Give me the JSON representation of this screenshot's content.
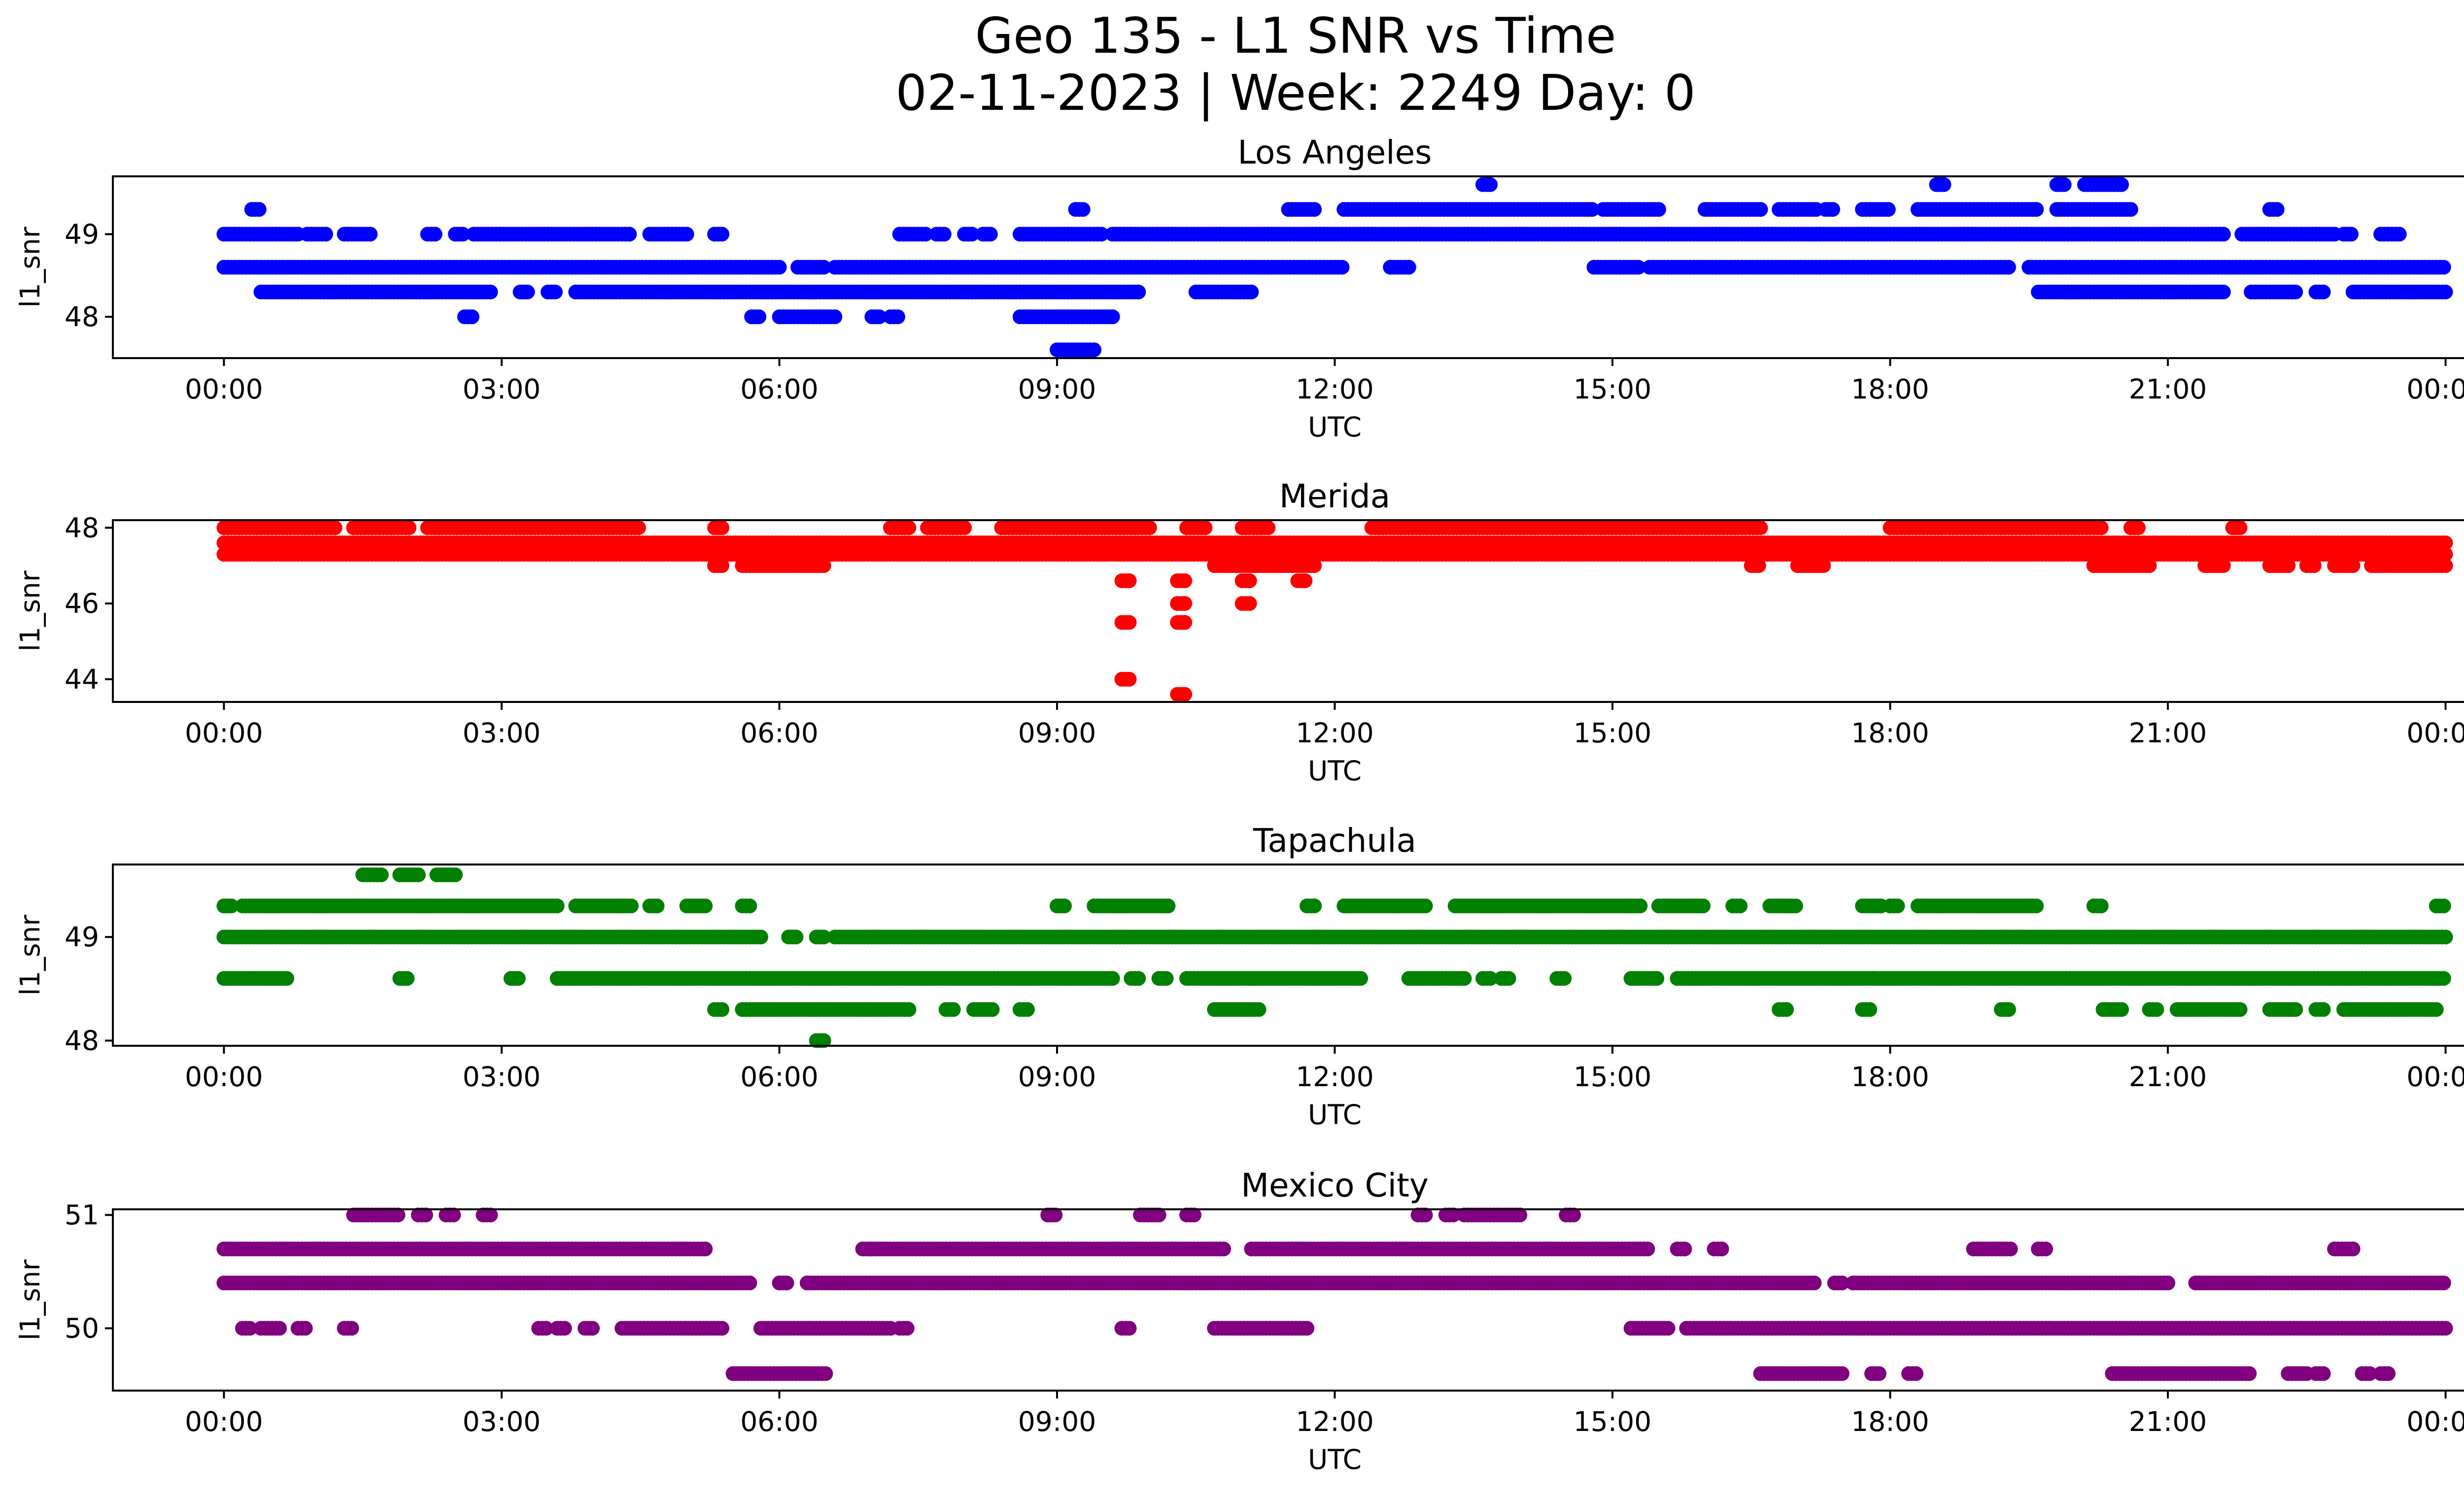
{
  "chart_data": {
    "type": "scatter",
    "suptitle_line1": "Geo 135 - L1 SNR vs Time",
    "suptitle_line2": "02-11-2023 | Week: 2249 Day: 0",
    "xlabel": "UTC",
    "ylabel": "l1_snr",
    "x_ticks": [
      "00:00",
      "03:00",
      "06:00",
      "09:00",
      "12:00",
      "15:00",
      "18:00",
      "21:00",
      "00:00"
    ],
    "x_range_hours": [
      -1.2,
      25.2
    ],
    "x_unit": "hours UTC",
    "grid": false,
    "panels": [
      {
        "title": "Los Angeles",
        "color": "#0000ff",
        "ylim": [
          47.5,
          49.7
        ],
        "yticks": [
          48,
          49
        ],
        "ytick_labels": [
          "48",
          "49"
        ],
        "rows": [
          {
            "y": 49.6,
            "segments": [
              [
                13.6,
                13.7
              ],
              [
                18.5,
                18.6
              ],
              [
                19.8,
                19.9
              ],
              [
                20.1,
                20.5
              ]
            ]
          },
          {
            "y": 49.3,
            "segments": [
              [
                0.3,
                0.4
              ],
              [
                9.2,
                9.3
              ],
              [
                11.5,
                11.8
              ],
              [
                12.1,
                14.8
              ],
              [
                14.9,
                15.5
              ],
              [
                16.0,
                16.6
              ],
              [
                16.8,
                17.2
              ],
              [
                17.3,
                17.4
              ],
              [
                17.7,
                18.0
              ],
              [
                18.3,
                19.6
              ],
              [
                19.8,
                20.6
              ],
              [
                22.1,
                22.2
              ]
            ]
          },
          {
            "y": 49.0,
            "segments": [
              [
                0.0,
                0.8
              ],
              [
                0.9,
                1.1
              ],
              [
                1.3,
                1.6
              ],
              [
                2.2,
                2.3
              ],
              [
                2.5,
                2.6
              ],
              [
                2.7,
                4.4
              ],
              [
                4.6,
                5.0
              ],
              [
                5.3,
                5.4
              ],
              [
                7.3,
                7.6
              ],
              [
                7.7,
                7.8
              ],
              [
                8.0,
                8.1
              ],
              [
                8.2,
                8.3
              ],
              [
                8.6,
                9.5
              ],
              [
                9.6,
                21.6
              ],
              [
                21.8,
                22.8
              ],
              [
                22.9,
                23.0
              ],
              [
                23.3,
                23.5
              ]
            ]
          },
          {
            "y": 48.6,
            "segments": [
              [
                0.0,
                6.0
              ],
              [
                6.2,
                6.5
              ],
              [
                6.6,
                12.1
              ],
              [
                12.6,
                12.8
              ],
              [
                14.8,
                15.3
              ],
              [
                15.4,
                19.3
              ],
              [
                19.5,
                24.0
              ]
            ]
          },
          {
            "y": 48.3,
            "segments": [
              [
                0.4,
                2.9
              ],
              [
                3.2,
                3.3
              ],
              [
                3.5,
                3.6
              ],
              [
                3.8,
                9.9
              ],
              [
                10.5,
                11.1
              ],
              [
                19.6,
                21.6
              ],
              [
                21.9,
                22.4
              ],
              [
                22.6,
                22.7
              ],
              [
                23.0,
                24.0
              ]
            ]
          },
          {
            "y": 48.0,
            "segments": [
              [
                2.6,
                2.7
              ],
              [
                5.7,
                5.8
              ],
              [
                6.0,
                6.6
              ],
              [
                7.0,
                7.1
              ],
              [
                7.2,
                7.3
              ],
              [
                8.6,
                9.6
              ]
            ]
          },
          {
            "y": 47.6,
            "segments": [
              [
                9.0,
                9.4
              ]
            ]
          }
        ]
      },
      {
        "title": "Merida",
        "color": "#ff0000",
        "ylim": [
          43.4,
          48.2
        ],
        "yticks": [
          44,
          46,
          48
        ],
        "ytick_labels": [
          "44",
          "46",
          "48"
        ],
        "rows": [
          {
            "y": 48.0,
            "segments": [
              [
                0.0,
                1.2
              ],
              [
                1.4,
                2.0
              ],
              [
                2.2,
                4.5
              ],
              [
                5.3,
                5.4
              ],
              [
                7.2,
                7.4
              ],
              [
                7.6,
                8.0
              ],
              [
                8.4,
                10.0
              ],
              [
                10.4,
                10.6
              ],
              [
                11.0,
                11.3
              ],
              [
                12.4,
                16.6
              ],
              [
                18.0,
                20.3
              ],
              [
                20.6,
                20.7
              ],
              [
                21.7,
                21.8
              ]
            ]
          },
          {
            "y": 47.6,
            "segments": [
              [
                0.0,
                24.0
              ]
            ]
          },
          {
            "y": 47.3,
            "segments": [
              [
                0.0,
                24.0
              ]
            ]
          },
          {
            "y": 47.0,
            "segments": [
              [
                5.3,
                5.4
              ],
              [
                5.6,
                6.5
              ],
              [
                10.7,
                11.8
              ],
              [
                16.5,
                16.6
              ],
              [
                17.0,
                17.3
              ],
              [
                20.2,
                20.8
              ],
              [
                21.4,
                21.6
              ],
              [
                22.1,
                22.3
              ],
              [
                22.5,
                22.6
              ],
              [
                22.8,
                23.0
              ],
              [
                23.2,
                24.0
              ]
            ]
          },
          {
            "y": 46.6,
            "segments": [
              [
                9.7,
                9.8
              ],
              [
                10.3,
                10.4
              ],
              [
                11.0,
                11.1
              ],
              [
                11.6,
                11.7
              ]
            ]
          },
          {
            "y": 46.0,
            "segments": [
              [
                10.3,
                10.4
              ],
              [
                11.0,
                11.1
              ]
            ]
          },
          {
            "y": 45.5,
            "segments": [
              [
                9.7,
                9.8
              ],
              [
                10.3,
                10.4
              ]
            ]
          },
          {
            "y": 44.0,
            "segments": [
              [
                9.7,
                9.8
              ]
            ]
          },
          {
            "y": 43.6,
            "segments": [
              [
                10.3,
                10.4
              ]
            ]
          }
        ]
      },
      {
        "title": "Tapachula",
        "color": "#008000",
        "ylim": [
          47.95,
          49.7
        ],
        "yticks": [
          48,
          49
        ],
        "ytick_labels": [
          "48",
          "49"
        ],
        "rows": [
          {
            "y": 49.6,
            "segments": [
              [
                1.5,
                1.7
              ],
              [
                1.9,
                2.1
              ],
              [
                2.3,
                2.5
              ]
            ]
          },
          {
            "y": 49.3,
            "segments": [
              [
                0.0,
                0.1
              ],
              [
                0.2,
                3.6
              ],
              [
                3.8,
                4.4
              ],
              [
                4.6,
                4.7
              ],
              [
                5.0,
                5.2
              ],
              [
                5.6,
                5.7
              ],
              [
                9.0,
                9.1
              ],
              [
                9.4,
                10.2
              ],
              [
                11.7,
                11.8
              ],
              [
                12.1,
                13.0
              ],
              [
                13.3,
                15.3
              ],
              [
                15.5,
                16.0
              ],
              [
                16.3,
                16.4
              ],
              [
                16.7,
                17.0
              ],
              [
                17.7,
                17.9
              ],
              [
                18.0,
                18.1
              ],
              [
                18.3,
                19.6
              ],
              [
                20.2,
                20.3
              ],
              [
                23.9,
                24.0
              ]
            ]
          },
          {
            "y": 49.0,
            "segments": [
              [
                0.0,
                5.8
              ],
              [
                6.1,
                6.2
              ],
              [
                6.4,
                6.5
              ],
              [
                6.6,
                24.0
              ]
            ]
          },
          {
            "y": 48.6,
            "segments": [
              [
                0.0,
                0.7
              ],
              [
                1.9,
                2.0
              ],
              [
                3.1,
                3.2
              ],
              [
                3.6,
                9.6
              ],
              [
                9.8,
                9.9
              ],
              [
                10.1,
                10.2
              ],
              [
                10.4,
                12.3
              ],
              [
                12.8,
                13.4
              ],
              [
                13.6,
                13.7
              ],
              [
                13.8,
                13.9
              ],
              [
                14.4,
                14.5
              ],
              [
                15.2,
                15.5
              ],
              [
                15.7,
                24.0
              ]
            ]
          },
          {
            "y": 48.3,
            "segments": [
              [
                5.3,
                5.4
              ],
              [
                5.6,
                7.4
              ],
              [
                7.8,
                7.9
              ],
              [
                8.1,
                8.3
              ],
              [
                8.6,
                8.7
              ],
              [
                10.7,
                11.2
              ],
              [
                16.8,
                16.9
              ],
              [
                17.7,
                17.8
              ],
              [
                19.2,
                19.3
              ],
              [
                20.3,
                20.5
              ],
              [
                20.8,
                20.9
              ],
              [
                21.1,
                21.8
              ],
              [
                22.1,
                22.4
              ],
              [
                22.6,
                22.7
              ],
              [
                22.9,
                23.9
              ]
            ]
          },
          {
            "y": 48.0,
            "segments": [
              [
                6.4,
                6.5
              ]
            ]
          }
        ]
      },
      {
        "title": "Mexico City",
        "color": "#800080",
        "ylim": [
          49.45,
          51.05
        ],
        "yticks": [
          50,
          51
        ],
        "ytick_labels": [
          "50",
          "51"
        ],
        "rows": [
          {
            "y": 51.0,
            "segments": [
              [
                1.4,
                1.9
              ],
              [
                2.1,
                2.2
              ],
              [
                2.4,
                2.5
              ],
              [
                2.8,
                2.9
              ],
              [
                8.9,
                9.0
              ],
              [
                9.9,
                10.1
              ],
              [
                10.4,
                10.5
              ],
              [
                12.9,
                13.0
              ],
              [
                13.2,
                13.3
              ],
              [
                13.4,
                14.0
              ],
              [
                14.5,
                14.6
              ]
            ]
          },
          {
            "y": 50.7,
            "segments": [
              [
                0.0,
                5.2
              ],
              [
                6.9,
                7.0
              ],
              [
                7.0,
                10.8
              ],
              [
                11.1,
                15.4
              ],
              [
                15.7,
                15.8
              ],
              [
                16.1,
                16.2
              ],
              [
                18.9,
                19.3
              ],
              [
                19.6,
                19.7
              ],
              [
                22.8,
                23.0
              ]
            ]
          },
          {
            "y": 50.4,
            "segments": [
              [
                0.0,
                5.7
              ],
              [
                6.0,
                6.1
              ],
              [
                6.3,
                17.2
              ],
              [
                17.4,
                17.5
              ],
              [
                17.6,
                21.0
              ],
              [
                21.3,
                24.0
              ]
            ]
          },
          {
            "y": 50.0,
            "segments": [
              [
                0.2,
                0.3
              ],
              [
                0.4,
                0.6
              ],
              [
                0.8,
                0.9
              ],
              [
                1.3,
                1.4
              ],
              [
                3.4,
                3.5
              ],
              [
                3.6,
                3.7
              ],
              [
                3.9,
                4.0
              ],
              [
                4.3,
                5.4
              ],
              [
                5.8,
                7.2
              ],
              [
                7.3,
                7.4
              ],
              [
                9.7,
                9.8
              ],
              [
                10.7,
                11.7
              ],
              [
                15.2,
                15.6
              ],
              [
                15.8,
                24.0
              ]
            ]
          },
          {
            "y": 49.6,
            "segments": [
              [
                5.5,
                6.5
              ],
              [
                16.6,
                17.5
              ],
              [
                17.8,
                17.9
              ],
              [
                18.2,
                18.3
              ],
              [
                20.4,
                21.9
              ],
              [
                22.3,
                22.5
              ],
              [
                22.6,
                22.7
              ],
              [
                23.1,
                23.2
              ],
              [
                23.3,
                23.4
              ]
            ]
          }
        ]
      }
    ]
  }
}
